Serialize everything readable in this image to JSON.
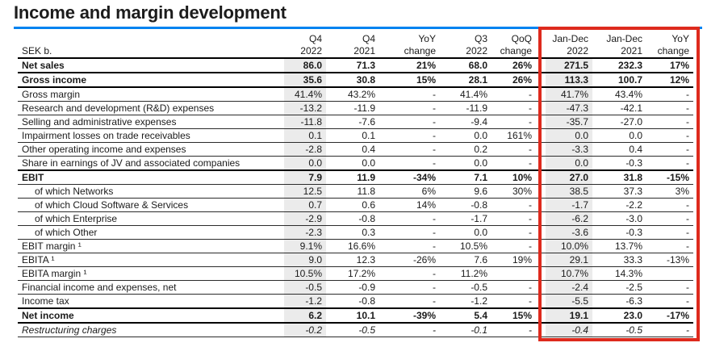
{
  "title": "Income and margin development",
  "colors": {
    "title_rule_blue": "#0082f0",
    "highlight_box_red": "#de2a1d",
    "shaded_column_gray": "#ebebeb"
  },
  "table": {
    "unit_label": "SEK b.",
    "columns": [
      {
        "line1": "Q4",
        "line2": "2022",
        "shaded": true
      },
      {
        "line1": "Q4",
        "line2": "2021",
        "shaded": false
      },
      {
        "line1": "YoY",
        "line2": "change",
        "shaded": false
      },
      {
        "line1": "Q3",
        "line2": "2022",
        "shaded": false
      },
      {
        "line1": "QoQ",
        "line2": "change",
        "shaded": false
      },
      {
        "line1": "Jan-Dec",
        "line2": "2022",
        "shaded": true
      },
      {
        "line1": "Jan-Dec",
        "line2": "2021",
        "shaded": false
      },
      {
        "line1": "YoY",
        "line2": "change",
        "shaded": false
      }
    ],
    "rows": [
      {
        "label": "Net sales",
        "style": "bold",
        "border": "thick",
        "values": [
          "86.0",
          "71.3",
          "21%",
          "68.0",
          "26%",
          "271.5",
          "232.3",
          "17%"
        ]
      },
      {
        "label": "Gross income",
        "style": "bold",
        "border": "thick",
        "values": [
          "35.6",
          "30.8",
          "15%",
          "28.1",
          "26%",
          "113.3",
          "100.7",
          "12%"
        ]
      },
      {
        "label": "Gross margin",
        "values": [
          "41.4%",
          "43.2%",
          "-",
          "41.4%",
          "-",
          "41.7%",
          "43.4%",
          "-"
        ]
      },
      {
        "label": "Research and development (R&D) expenses",
        "values": [
          "-13.2",
          "-11.9",
          "-",
          "-11.9",
          "-",
          "-47.3",
          "-42.1",
          "-"
        ]
      },
      {
        "label": "Selling and administrative expenses",
        "values": [
          "-11.8",
          "-7.6",
          "-",
          "-9.4",
          "-",
          "-35.7",
          "-27.0",
          "-"
        ]
      },
      {
        "label": "Impairment losses on trade receivables",
        "values": [
          "0.1",
          "0.1",
          "-",
          "0.0",
          "161%",
          "0.0",
          "0.0",
          "-"
        ]
      },
      {
        "label": "Other operating income and expenses",
        "values": [
          "-2.8",
          "0.4",
          "-",
          "0.2",
          "-",
          "-3.3",
          "0.4",
          "-"
        ]
      },
      {
        "label": "Share in earnings of JV and associated companies",
        "border": "thick",
        "values": [
          "0.0",
          "0.0",
          "-",
          "0.0",
          "-",
          "0.0",
          "-0.3",
          "-"
        ]
      },
      {
        "label": "EBIT",
        "style": "bold",
        "values": [
          "7.9",
          "11.9",
          "-34%",
          "7.1",
          "10%",
          "27.0",
          "31.8",
          "-15%"
        ]
      },
      {
        "label": "of which Networks",
        "indent": true,
        "values": [
          "12.5",
          "11.8",
          "6%",
          "9.6",
          "30%",
          "38.5",
          "37.3",
          "3%"
        ]
      },
      {
        "label": "of which Cloud Software & Services",
        "indent": true,
        "values": [
          "0.7",
          "0.6",
          "14%",
          "-0.8",
          "-",
          "-1.7",
          "-2.2",
          "-"
        ]
      },
      {
        "label": "of which Enterprise",
        "indent": true,
        "values": [
          "-2.9",
          "-0.8",
          "-",
          "-1.7",
          "-",
          "-6.2",
          "-3.0",
          "-"
        ]
      },
      {
        "label": "of which Other",
        "indent": true,
        "values": [
          "-2.3",
          "0.3",
          "-",
          "0.0",
          "-",
          "-3.6",
          "-0.3",
          "-"
        ]
      },
      {
        "label": "EBIT margin ¹",
        "values": [
          "9.1%",
          "16.6%",
          "-",
          "10.5%",
          "-",
          "10.0%",
          "13.7%",
          "-"
        ]
      },
      {
        "label": "EBITA ¹",
        "values": [
          "9.0",
          "12.3",
          "-26%",
          "7.6",
          "19%",
          "29.1",
          "33.3",
          "-13%"
        ]
      },
      {
        "label": "EBITA margin ¹",
        "values": [
          "10.5%",
          "17.2%",
          "-",
          "11.2%",
          "",
          "10.7%",
          "14.3%",
          ""
        ]
      },
      {
        "label": "Financial income and expenses, net",
        "values": [
          "-0.5",
          "-0.9",
          "-",
          "-0.5",
          "-",
          "-2.4",
          "-2.5",
          "-"
        ]
      },
      {
        "label": "Income tax",
        "border": "thick",
        "values": [
          "-1.2",
          "-0.8",
          "-",
          "-1.2",
          "-",
          "-5.5",
          "-6.3",
          "-"
        ]
      },
      {
        "label": "Net income",
        "style": "bold",
        "border": "thick",
        "values": [
          "6.2",
          "10.1",
          "-39%",
          "5.4",
          "15%",
          "19.1",
          "23.0",
          "-17%"
        ]
      },
      {
        "label": "Restructuring charges",
        "style": "italic",
        "values": [
          "-0.2",
          "-0.5",
          "-",
          "-0.1",
          "-",
          "-0.4",
          "-0.5",
          "-"
        ]
      }
    ]
  }
}
